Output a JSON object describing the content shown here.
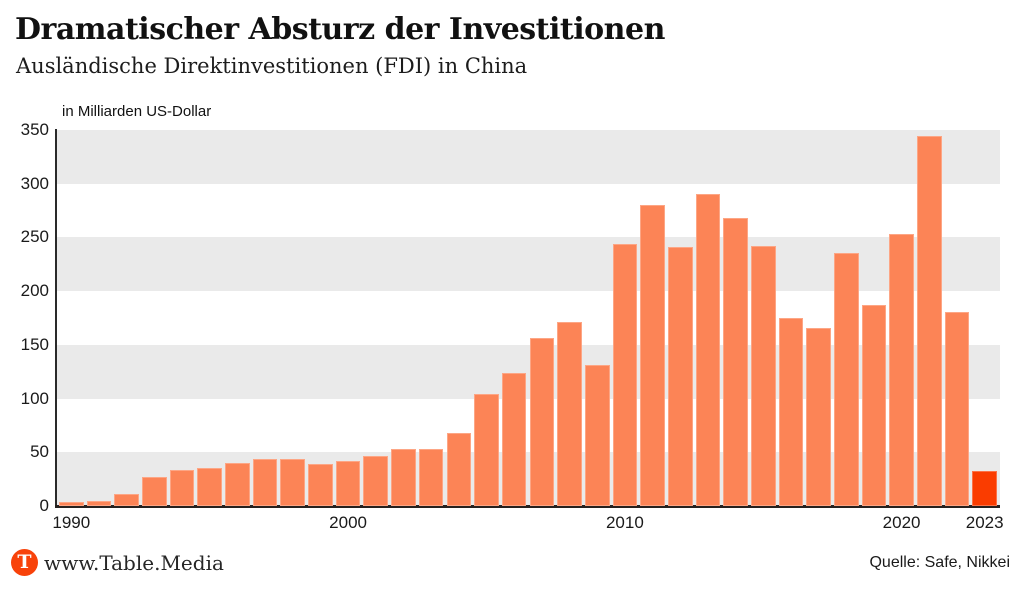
{
  "header": {
    "title": "Dramatischer Absturz der Investitionen",
    "subtitle": "Ausländische Direktinvestitionen (FDI) in China"
  },
  "chart_data": {
    "type": "bar",
    "title": "Dramatischer Absturz der Investitionen",
    "subtitle": "Ausländische Direktinvestitionen (FDI) in China",
    "unit_label": "in Milliarden US-Dollar",
    "xlabel": "",
    "ylabel": "in Milliarden US-Dollar",
    "ylim": [
      0,
      350
    ],
    "yticks": [
      0,
      50,
      100,
      150,
      200,
      250,
      300,
      350
    ],
    "xticks": [
      1990,
      2000,
      2010,
      2020,
      2023
    ],
    "grid": "alternating-horizontal-bands",
    "categories": [
      1990,
      1991,
      1992,
      1993,
      1994,
      1995,
      1996,
      1997,
      1998,
      1999,
      2000,
      2001,
      2002,
      2003,
      2004,
      2005,
      2006,
      2007,
      2008,
      2009,
      2010,
      2011,
      2012,
      2013,
      2014,
      2015,
      2016,
      2017,
      2018,
      2019,
      2020,
      2021,
      2022,
      2023
    ],
    "values": [
      3.5,
      4.4,
      11.2,
      27.5,
      33.8,
      35.8,
      40.2,
      44.2,
      43.8,
      38.8,
      42.1,
      47.0,
      53.1,
      53.5,
      68.1,
      104.1,
      124.1,
      156.2,
      171.5,
      131.1,
      243.7,
      280.1,
      241.2,
      290.9,
      268.1,
      242.5,
      174.8,
      166.1,
      235.4,
      187.2,
      253.1,
      344.1,
      180.2,
      33.0
    ],
    "highlight_category": 2023,
    "colors": {
      "bar": "#FC8456",
      "bar_highlight": "#FA3C00",
      "band_gray": "#EAEAEA",
      "axis": "#262626"
    }
  },
  "footer": {
    "logo_letter": "T",
    "brand": "www.Table.Media",
    "source": "Quelle: Safe, Nikkei"
  }
}
